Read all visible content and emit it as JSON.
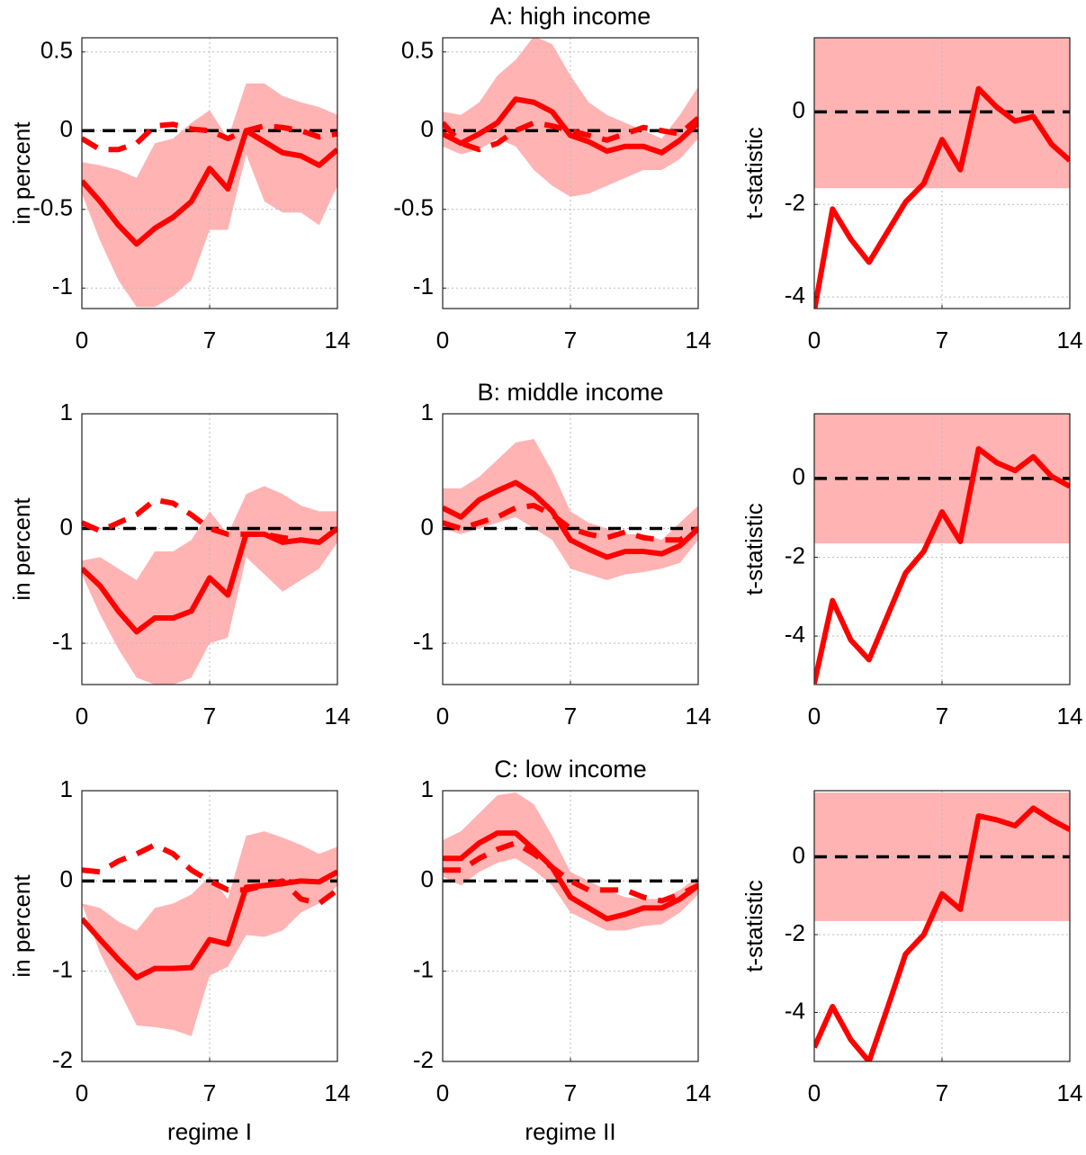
{
  "chart_data": [
    {
      "type": "line",
      "ylabel": "in percent",
      "x": [
        0,
        1,
        2,
        3,
        4,
        5,
        6,
        7,
        8,
        9,
        10,
        11,
        12,
        13,
        14
      ],
      "xlim": [
        0,
        14
      ],
      "xticks": [
        0,
        7,
        14
      ],
      "ylim": [
        -1.13,
        0.59
      ],
      "yticks": [
        -1,
        -0.5,
        0,
        0.5
      ],
      "grid": true,
      "hline": 0,
      "band": {
        "color": "#ffb3b3",
        "lower": [
          -0.4,
          -0.7,
          -0.95,
          -1.12,
          -1.12,
          -1.05,
          -0.95,
          -0.63,
          -0.63,
          -0.15,
          -0.45,
          -0.52,
          -0.52,
          -0.6,
          -0.35
        ],
        "upper": [
          -0.2,
          -0.22,
          -0.25,
          -0.3,
          -0.08,
          -0.05,
          0.05,
          0.13,
          -0.05,
          0.3,
          0.3,
          0.22,
          0.18,
          0.15,
          0.1
        ]
      },
      "series": [
        {
          "color": "#ff0000",
          "style": "solid",
          "values": [
            -0.32,
            -0.45,
            -0.6,
            -0.72,
            -0.62,
            -0.55,
            -0.45,
            -0.24,
            -0.37,
            0.0,
            -0.07,
            -0.14,
            -0.16,
            -0.22,
            -0.12
          ]
        },
        {
          "color": "#ff0000",
          "style": "dashed",
          "values": [
            -0.05,
            -0.12,
            -0.12,
            -0.08,
            0.03,
            0.04,
            0.01,
            0.0,
            -0.05,
            0.0,
            0.03,
            0.02,
            0.0,
            -0.04,
            -0.02
          ]
        }
      ]
    },
    {
      "type": "line",
      "title": "A: high income",
      "x": [
        0,
        1,
        2,
        3,
        4,
        5,
        6,
        7,
        8,
        9,
        10,
        11,
        12,
        13,
        14
      ],
      "xlim": [
        0,
        14
      ],
      "xticks": [
        0,
        7,
        14
      ],
      "ylim": [
        -1.13,
        0.59
      ],
      "yticks": [
        -1,
        -0.5,
        0,
        0.5
      ],
      "grid": true,
      "hline": 0,
      "band": {
        "color": "#ffb3b3",
        "lower": [
          -0.1,
          -0.15,
          -0.12,
          -0.05,
          -0.1,
          -0.25,
          -0.35,
          -0.42,
          -0.4,
          -0.35,
          -0.3,
          -0.25,
          -0.25,
          -0.18,
          -0.05
        ],
        "upper": [
          0.12,
          0.1,
          0.18,
          0.35,
          0.45,
          0.6,
          0.55,
          0.35,
          0.18,
          0.1,
          0.05,
          0.0,
          -0.05,
          0.1,
          0.28
        ]
      },
      "series": [
        {
          "color": "#ff0000",
          "style": "solid",
          "values": [
            -0.02,
            -0.08,
            -0.02,
            0.05,
            0.2,
            0.18,
            0.12,
            -0.03,
            -0.07,
            -0.13,
            -0.1,
            -0.1,
            -0.14,
            -0.06,
            0.05
          ]
        },
        {
          "color": "#ff0000",
          "style": "dashed",
          "values": [
            0.05,
            -0.08,
            -0.12,
            -0.08,
            0.0,
            0.05,
            0.03,
            0.0,
            -0.03,
            -0.06,
            -0.02,
            0.02,
            0.0,
            -0.02,
            0.08
          ]
        }
      ]
    },
    {
      "type": "line",
      "ylabel": "t-statistic",
      "x": [
        0,
        1,
        2,
        3,
        4,
        5,
        6,
        7,
        8,
        9,
        10,
        11,
        12,
        13,
        14
      ],
      "xlim": [
        0,
        14
      ],
      "xticks": [
        0,
        7,
        14
      ],
      "ylim": [
        -4.25,
        1.6
      ],
      "yticks": [
        -4,
        -2,
        0
      ],
      "grid": true,
      "hline": 0,
      "band": {
        "color": "#ffb3b3",
        "lower": -1.65,
        "upper": 1.65
      },
      "series": [
        {
          "color": "#ff0000",
          "style": "solid",
          "values": [
            -4.3,
            -2.1,
            -2.75,
            -3.25,
            -2.6,
            -1.95,
            -1.55,
            -0.6,
            -1.25,
            0.5,
            0.1,
            -0.2,
            -0.1,
            -0.7,
            -1.05
          ]
        }
      ]
    },
    {
      "type": "line",
      "ylabel": "in percent",
      "x": [
        0,
        1,
        2,
        3,
        4,
        5,
        6,
        7,
        8,
        9,
        10,
        11,
        12,
        13,
        14
      ],
      "xlim": [
        0,
        14
      ],
      "xticks": [
        0,
        7,
        14
      ],
      "ylim": [
        -1.36,
        1
      ],
      "yticks": [
        -1,
        0,
        1
      ],
      "grid": true,
      "hline": 0,
      "band": {
        "color": "#ffb3b3",
        "lower": [
          -0.4,
          -0.75,
          -1.05,
          -1.3,
          -1.36,
          -1.36,
          -1.3,
          -1.0,
          -0.95,
          -0.25,
          -0.4,
          -0.55,
          -0.45,
          -0.35,
          -0.12
        ],
        "upper": [
          -0.28,
          -0.25,
          -0.35,
          -0.45,
          -0.2,
          -0.2,
          -0.1,
          0.15,
          -0.05,
          0.3,
          0.37,
          0.3,
          0.2,
          0.15,
          0.15
        ]
      },
      "series": [
        {
          "color": "#ff0000",
          "style": "solid",
          "values": [
            -0.35,
            -0.5,
            -0.72,
            -0.9,
            -0.78,
            -0.78,
            -0.72,
            -0.43,
            -0.58,
            -0.05,
            -0.05,
            -0.12,
            -0.1,
            -0.12,
            0.0
          ]
        },
        {
          "color": "#ff0000",
          "style": "dashed",
          "values": [
            0.05,
            -0.02,
            0.05,
            0.12,
            0.25,
            0.22,
            0.12,
            0.0,
            -0.05,
            -0.05,
            -0.05,
            -0.08,
            -0.1,
            -0.12,
            0.0
          ]
        }
      ]
    },
    {
      "type": "line",
      "title": "B: middle income",
      "x": [
        0,
        1,
        2,
        3,
        4,
        5,
        6,
        7,
        8,
        9,
        10,
        11,
        12,
        13,
        14
      ],
      "xlim": [
        0,
        14
      ],
      "xticks": [
        0,
        7,
        14
      ],
      "ylim": [
        -1.36,
        1
      ],
      "yticks": [
        -1,
        0,
        1
      ],
      "grid": true,
      "hline": 0,
      "band": {
        "color": "#ffb3b3",
        "lower": [
          0.0,
          -0.05,
          0.0,
          0.05,
          0.1,
          0.0,
          -0.1,
          -0.35,
          -0.4,
          -0.45,
          -0.4,
          -0.38,
          -0.35,
          -0.3,
          -0.1
        ],
        "upper": [
          0.35,
          0.35,
          0.45,
          0.6,
          0.75,
          0.78,
          0.5,
          0.15,
          0.05,
          0.0,
          -0.05,
          -0.05,
          -0.1,
          0.05,
          0.2
        ]
      },
      "series": [
        {
          "color": "#ff0000",
          "style": "solid",
          "values": [
            0.18,
            0.1,
            0.25,
            0.33,
            0.4,
            0.3,
            0.15,
            -0.1,
            -0.18,
            -0.25,
            -0.2,
            -0.2,
            -0.22,
            -0.15,
            0.0
          ]
        },
        {
          "color": "#ff0000",
          "style": "dashed",
          "values": [
            0.05,
            0.0,
            0.05,
            0.1,
            0.18,
            0.2,
            0.12,
            0.0,
            -0.05,
            -0.08,
            -0.03,
            -0.08,
            -0.1,
            -0.1,
            0.0
          ]
        }
      ]
    },
    {
      "type": "line",
      "ylabel": "t-statistic",
      "x": [
        0,
        1,
        2,
        3,
        4,
        5,
        6,
        7,
        8,
        9,
        10,
        11,
        12,
        13,
        14
      ],
      "xlim": [
        0,
        14
      ],
      "xticks": [
        0,
        7,
        14
      ],
      "ylim": [
        -5.23,
        1.64
      ],
      "yticks": [
        -4,
        -2,
        0
      ],
      "grid": true,
      "hline": 0,
      "band": {
        "color": "#ffb3b3",
        "lower": -1.65,
        "upper": 1.65
      },
      "series": [
        {
          "color": "#ff0000",
          "style": "solid",
          "values": [
            -5.2,
            -3.1,
            -4.1,
            -4.6,
            -3.5,
            -2.4,
            -1.85,
            -0.85,
            -1.6,
            0.75,
            0.4,
            0.2,
            0.55,
            0.05,
            -0.2
          ]
        }
      ]
    },
    {
      "type": "line",
      "ylabel": "in percent",
      "xlabel": "regime I",
      "x": [
        0,
        1,
        2,
        3,
        4,
        5,
        6,
        7,
        8,
        9,
        10,
        11,
        12,
        13,
        14
      ],
      "xlim": [
        0,
        14
      ],
      "xticks": [
        0,
        7,
        14
      ],
      "ylim": [
        -2,
        1
      ],
      "yticks": [
        -2,
        -1,
        0,
        1
      ],
      "grid": true,
      "hline": 0,
      "band": {
        "color": "#ffb3b3",
        "lower": [
          -0.25,
          -0.8,
          -1.2,
          -1.6,
          -1.62,
          -1.65,
          -1.72,
          -1.05,
          -0.95,
          -0.6,
          -0.62,
          -0.55,
          -0.35,
          -0.25,
          -0.05
        ],
        "upper": [
          -0.25,
          -0.3,
          -0.45,
          -0.55,
          -0.3,
          -0.25,
          -0.15,
          0.05,
          -0.2,
          0.5,
          0.55,
          0.48,
          0.4,
          0.3,
          0.38
        ]
      },
      "series": [
        {
          "color": "#ff0000",
          "style": "solid",
          "values": [
            -0.42,
            -0.65,
            -0.87,
            -1.07,
            -0.97,
            -0.97,
            -0.96,
            -0.65,
            -0.7,
            -0.07,
            -0.05,
            -0.03,
            0.0,
            -0.01,
            0.1
          ]
        },
        {
          "color": "#ff0000",
          "style": "dashed",
          "values": [
            0.12,
            0.1,
            0.22,
            0.3,
            0.4,
            0.3,
            0.12,
            0.0,
            -0.1,
            -0.1,
            -0.05,
            0.0,
            -0.2,
            -0.25,
            -0.1
          ]
        }
      ]
    },
    {
      "type": "line",
      "title": "C: low income",
      "xlabel": "regime II",
      "x": [
        0,
        1,
        2,
        3,
        4,
        5,
        6,
        7,
        8,
        9,
        10,
        11,
        12,
        13,
        14
      ],
      "xlim": [
        0,
        14
      ],
      "xticks": [
        0,
        7,
        14
      ],
      "ylim": [
        -2,
        1
      ],
      "yticks": [
        -2,
        -1,
        0,
        1
      ],
      "grid": true,
      "hline": 0,
      "band": {
        "color": "#ffb3b3",
        "lower": [
          0.05,
          -0.05,
          0.1,
          0.2,
          0.25,
          0.12,
          -0.05,
          -0.35,
          -0.45,
          -0.55,
          -0.55,
          -0.5,
          -0.48,
          -0.35,
          -0.15
        ],
        "upper": [
          0.45,
          0.55,
          0.75,
          0.95,
          0.98,
          0.85,
          0.5,
          0.1,
          0.0,
          -0.1,
          -0.18,
          -0.2,
          -0.2,
          -0.1,
          0.05
        ]
      },
      "series": [
        {
          "color": "#ff0000",
          "style": "solid",
          "values": [
            0.25,
            0.25,
            0.42,
            0.53,
            0.53,
            0.35,
            0.15,
            -0.18,
            -0.3,
            -0.42,
            -0.37,
            -0.3,
            -0.3,
            -0.2,
            -0.05
          ]
        },
        {
          "color": "#ff0000",
          "style": "dashed",
          "values": [
            0.12,
            0.12,
            0.25,
            0.35,
            0.42,
            0.3,
            0.15,
            0.0,
            -0.1,
            -0.1,
            -0.1,
            -0.18,
            -0.22,
            -0.15,
            -0.05
          ]
        }
      ]
    },
    {
      "type": "line",
      "ylabel": "t-statistic",
      "x": [
        0,
        1,
        2,
        3,
        4,
        5,
        6,
        7,
        8,
        9,
        10,
        11,
        12,
        13,
        14
      ],
      "xlim": [
        0,
        14
      ],
      "xticks": [
        0,
        7,
        14
      ],
      "ylim": [
        -5.26,
        1.7
      ],
      "yticks": [
        -4,
        -2,
        0
      ],
      "grid": true,
      "hline": 0,
      "band": {
        "color": "#ffb3b3",
        "lower": -1.65,
        "upper": 1.65
      },
      "series": [
        {
          "color": "#ff0000",
          "style": "solid",
          "values": [
            -4.9,
            -3.85,
            -4.7,
            -5.26,
            -3.9,
            -2.5,
            -2.0,
            -0.95,
            -1.35,
            1.05,
            0.95,
            0.8,
            1.25,
            0.95,
            0.7
          ]
        }
      ]
    }
  ]
}
